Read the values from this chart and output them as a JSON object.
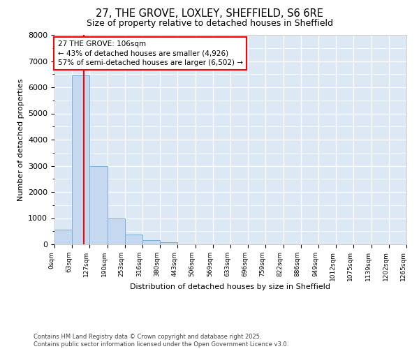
{
  "title1": "27, THE GROVE, LOXLEY, SHEFFIELD, S6 6RE",
  "title2": "Size of property relative to detached houses in Sheffield",
  "xlabel": "Distribution of detached houses by size in Sheffield",
  "ylabel": "Number of detached properties",
  "bar_color": "#c5d8f0",
  "bar_edge_color": "#7bafd4",
  "background_color": "#dde8f5",
  "fig_background": "#ffffff",
  "grid_color": "#ffffff",
  "tick_labels": [
    "0sqm",
    "63sqm",
    "127sqm",
    "190sqm",
    "253sqm",
    "316sqm",
    "380sqm",
    "443sqm",
    "506sqm",
    "569sqm",
    "633sqm",
    "696sqm",
    "759sqm",
    "822sqm",
    "886sqm",
    "949sqm",
    "1012sqm",
    "1075sqm",
    "1139sqm",
    "1202sqm",
    "1265sqm"
  ],
  "bar_heights": [
    550,
    6450,
    3000,
    980,
    370,
    150,
    70,
    0,
    0,
    0,
    0,
    0,
    0,
    0,
    0,
    0,
    0,
    0,
    0,
    0
  ],
  "ylim": [
    0,
    8000
  ],
  "yticks": [
    0,
    1000,
    2000,
    3000,
    4000,
    5000,
    6000,
    7000,
    8000
  ],
  "property_line_x": 1.67,
  "annotation_title": "27 THE GROVE: 106sqm",
  "annotation_line1": "← 43% of detached houses are smaller (4,926)",
  "annotation_line2": "57% of semi-detached houses are larger (6,502) →",
  "footer_line1": "Contains HM Land Registry data © Crown copyright and database right 2025.",
  "footer_line2": "Contains public sector information licensed under the Open Government Licence v3.0."
}
